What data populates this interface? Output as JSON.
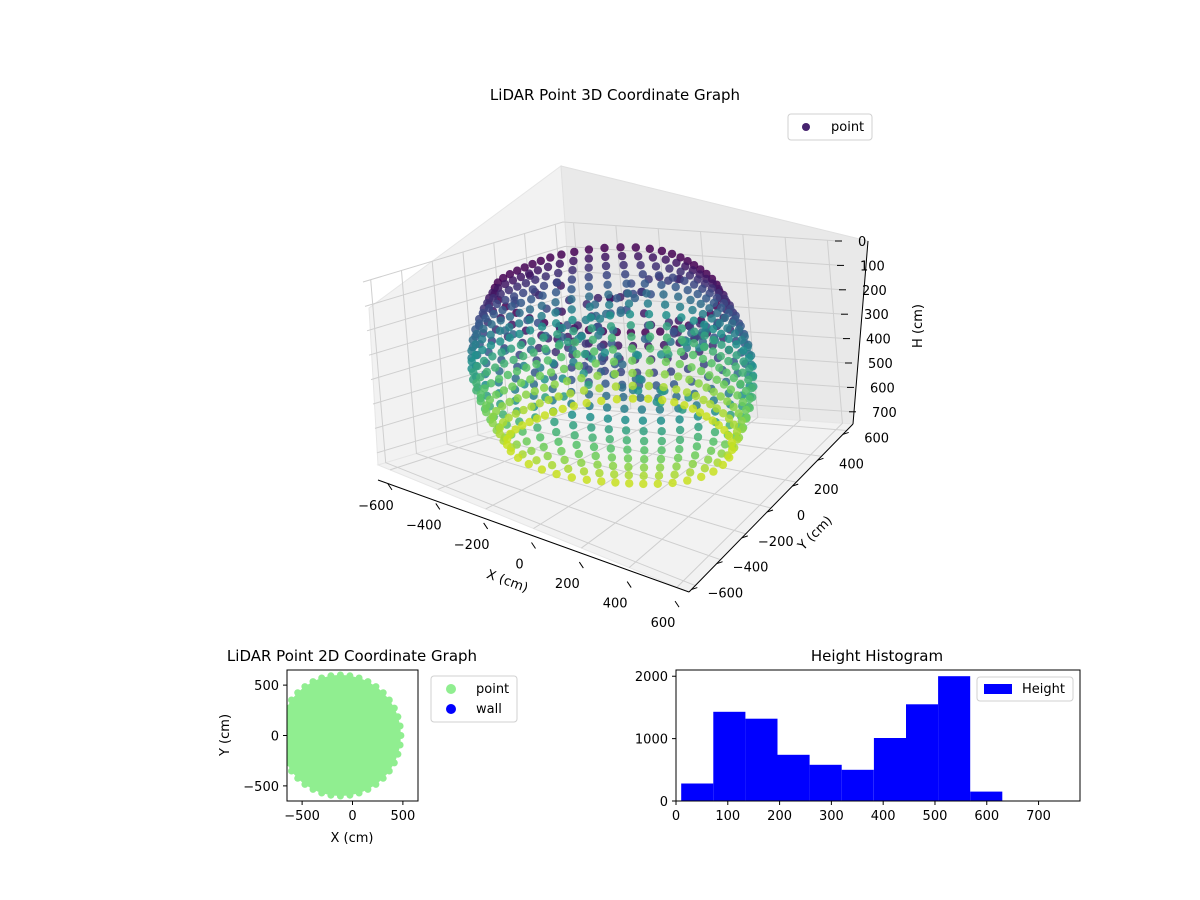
{
  "chart_data": [
    {
      "type": "scatter3d",
      "title": "LiDAR Point 3D Coordinate Graph",
      "xlabel": "X (cm)",
      "ylabel": "Y (cm)",
      "zlabel": "H (cm)",
      "x_ticks": [
        "−600",
        "−400",
        "−200",
        "0",
        "200",
        "400",
        "600"
      ],
      "y_ticks": [
        "−600",
        "−400",
        "−200",
        "0",
        "200",
        "400",
        "600"
      ],
      "z_ticks": [
        "0",
        "100",
        "200",
        "300",
        "400",
        "500",
        "600",
        "700"
      ],
      "xlim": [
        -650,
        650
      ],
      "ylim": [
        -650,
        650
      ],
      "zlim": [
        0,
        750
      ],
      "z_inverted": true,
      "colormap": "viridis",
      "legend": {
        "label": "point",
        "color": "#46236e",
        "placement": "upper right"
      },
      "series": [
        {
          "name": "point",
          "description_values": {
            "shape": "ring of vertical scan columns",
            "outer_radius": 560,
            "height_range": [
              0,
              620
            ]
          }
        }
      ]
    },
    {
      "type": "scatter",
      "title": "LiDAR Point 2D Coordinate Graph",
      "xlabel": "X (cm)",
      "ylabel": "Y (cm)",
      "x_ticks": [
        "−500",
        "0",
        "500"
      ],
      "y_ticks": [
        "500",
        "0",
        "−500"
      ],
      "xlim": [
        -650,
        650
      ],
      "ylim": [
        -650,
        650
      ],
      "legend": {
        "placement": "outside right",
        "entries": [
          {
            "label": "point",
            "color": "#90ee90"
          },
          {
            "label": "wall",
            "color": "#0000ff"
          }
        ]
      },
      "series": [
        {
          "name": "point",
          "color": "#90ee90",
          "center": [
            -120,
            0
          ],
          "radius": 600
        }
      ]
    },
    {
      "type": "bar",
      "title": "Height Histogram",
      "x_ticks": [
        "0",
        "100",
        "200",
        "300",
        "400",
        "500",
        "600",
        "700"
      ],
      "y_ticks": [
        "0",
        "1000",
        "2000"
      ],
      "xlim": [
        0,
        780
      ],
      "ylim": [
        0,
        2100
      ],
      "color": "#0000ff",
      "legend": {
        "label": "Height",
        "placement": "upper right"
      },
      "bins": [
        {
          "x0": 10,
          "x1": 72,
          "count": 280
        },
        {
          "x0": 72,
          "x1": 134,
          "count": 1430
        },
        {
          "x0": 134,
          "x1": 196,
          "count": 1320
        },
        {
          "x0": 196,
          "x1": 258,
          "count": 740
        },
        {
          "x0": 258,
          "x1": 320,
          "count": 580
        },
        {
          "x0": 320,
          "x1": 382,
          "count": 500
        },
        {
          "x0": 382,
          "x1": 444,
          "count": 1010
        },
        {
          "x0": 444,
          "x1": 506,
          "count": 1550
        },
        {
          "x0": 506,
          "x1": 568,
          "count": 2000
        },
        {
          "x0": 568,
          "x1": 630,
          "count": 150
        }
      ]
    }
  ]
}
